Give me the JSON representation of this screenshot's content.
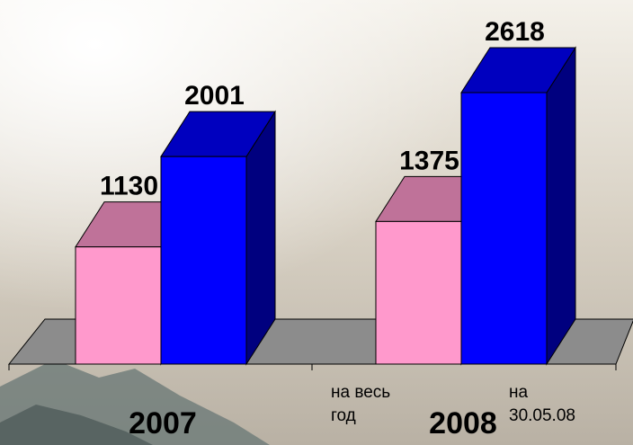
{
  "chart_data": {
    "type": "bar3d",
    "categories": [
      "2007",
      "2008"
    ],
    "series": [
      {
        "color": "#ff99cc",
        "values": [
          1130,
          1375
        ]
      },
      {
        "color": "#0000ff",
        "values": [
          2001,
          2618
        ]
      }
    ],
    "annotations": [
      "на весь год",
      "на 30.05.08"
    ]
  }
}
